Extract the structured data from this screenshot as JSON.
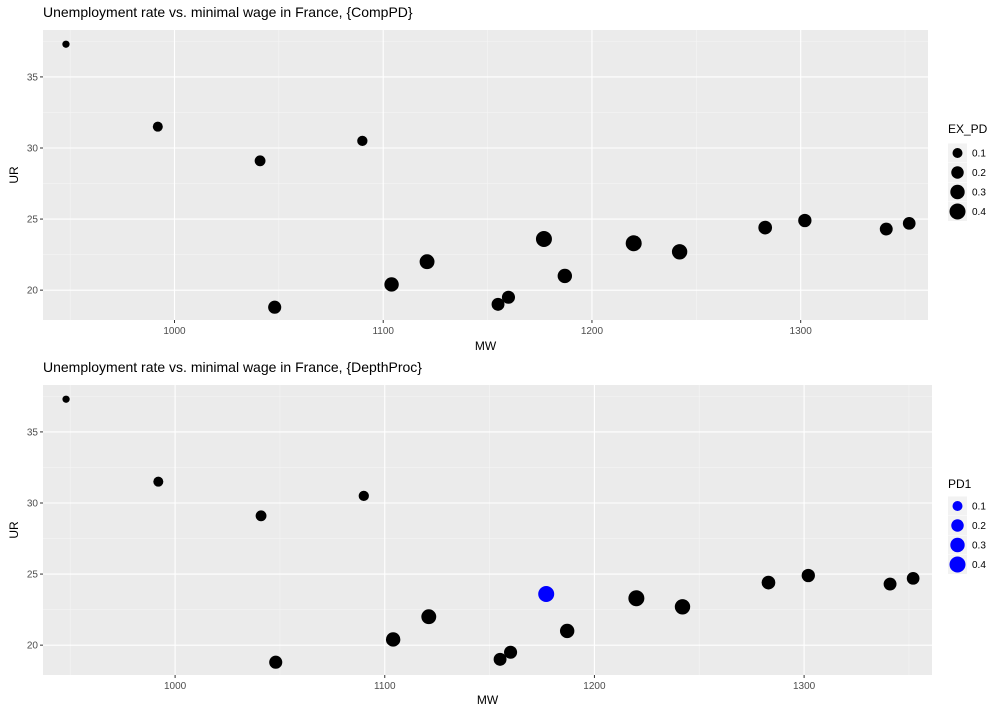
{
  "chart_data": [
    {
      "type": "scatter",
      "title": "Unemployment rate vs. minimal wage in France, {CompPD}",
      "xlabel": "MW",
      "ylabel": "UR",
      "xlim": [
        937,
        1361
      ],
      "ylim": [
        17.9,
        38.3
      ],
      "x_ticks": [
        1000,
        1100,
        1200,
        1300
      ],
      "y_ticks": [
        20,
        25,
        30,
        35
      ],
      "grid": true,
      "legend": {
        "title": "EX_PD",
        "position": "right",
        "entries": [
          "0.1",
          "0.2",
          "0.3",
          "0.4"
        ],
        "color": "#000000"
      },
      "points": [
        {
          "x": 948,
          "y": 37.3,
          "size": 0.03,
          "color": "#000000"
        },
        {
          "x": 992,
          "y": 31.5,
          "size": 0.1,
          "color": "#000000"
        },
        {
          "x": 1041,
          "y": 29.1,
          "size": 0.13,
          "color": "#000000"
        },
        {
          "x": 1048,
          "y": 18.8,
          "size": 0.23,
          "color": "#000000"
        },
        {
          "x": 1090,
          "y": 30.5,
          "size": 0.11,
          "color": "#000000"
        },
        {
          "x": 1104,
          "y": 20.4,
          "size": 0.3,
          "color": "#000000"
        },
        {
          "x": 1121,
          "y": 22.0,
          "size": 0.33,
          "color": "#000000"
        },
        {
          "x": 1155,
          "y": 19.0,
          "size": 0.22,
          "color": "#000000"
        },
        {
          "x": 1160,
          "y": 19.5,
          "size": 0.23,
          "color": "#000000"
        },
        {
          "x": 1177,
          "y": 23.6,
          "size": 0.4,
          "color": "#000000"
        },
        {
          "x": 1187,
          "y": 21.0,
          "size": 0.3,
          "color": "#000000"
        },
        {
          "x": 1220,
          "y": 23.3,
          "size": 0.4,
          "color": "#000000"
        },
        {
          "x": 1242,
          "y": 22.7,
          "size": 0.36,
          "color": "#000000"
        },
        {
          "x": 1283,
          "y": 24.4,
          "size": 0.26,
          "color": "#000000"
        },
        {
          "x": 1302,
          "y": 24.9,
          "size": 0.24,
          "color": "#000000"
        },
        {
          "x": 1341,
          "y": 24.3,
          "size": 0.22,
          "color": "#000000"
        },
        {
          "x": 1352,
          "y": 24.7,
          "size": 0.21,
          "color": "#000000"
        }
      ]
    },
    {
      "type": "scatter",
      "title": "Unemployment rate vs. minimal wage in France, {DepthProc}",
      "xlabel": "MW",
      "ylabel": "UR",
      "xlim": [
        937,
        1361
      ],
      "ylim": [
        17.9,
        38.3
      ],
      "x_ticks": [
        1000,
        1100,
        1200,
        1300
      ],
      "y_ticks": [
        20,
        25,
        30,
        35
      ],
      "grid": true,
      "legend": {
        "title": "PD1",
        "position": "right",
        "entries": [
          "0.1",
          "0.2",
          "0.3",
          "0.4"
        ],
        "color": "#0000ff"
      },
      "points": [
        {
          "x": 948,
          "y": 37.3,
          "size": 0.03,
          "color": "#000000"
        },
        {
          "x": 992,
          "y": 31.5,
          "size": 0.1,
          "color": "#000000"
        },
        {
          "x": 1041,
          "y": 29.1,
          "size": 0.13,
          "color": "#000000"
        },
        {
          "x": 1048,
          "y": 18.8,
          "size": 0.23,
          "color": "#000000"
        },
        {
          "x": 1090,
          "y": 30.5,
          "size": 0.11,
          "color": "#000000"
        },
        {
          "x": 1104,
          "y": 20.4,
          "size": 0.3,
          "color": "#000000"
        },
        {
          "x": 1121,
          "y": 22.0,
          "size": 0.33,
          "color": "#000000"
        },
        {
          "x": 1155,
          "y": 19.0,
          "size": 0.22,
          "color": "#000000"
        },
        {
          "x": 1160,
          "y": 19.5,
          "size": 0.23,
          "color": "#000000"
        },
        {
          "x": 1177,
          "y": 23.6,
          "size": 0.4,
          "color": "#0000ff"
        },
        {
          "x": 1187,
          "y": 21.0,
          "size": 0.3,
          "color": "#000000"
        },
        {
          "x": 1220,
          "y": 23.3,
          "size": 0.4,
          "color": "#000000"
        },
        {
          "x": 1242,
          "y": 22.7,
          "size": 0.36,
          "color": "#000000"
        },
        {
          "x": 1283,
          "y": 24.4,
          "size": 0.26,
          "color": "#000000"
        },
        {
          "x": 1302,
          "y": 24.9,
          "size": 0.24,
          "color": "#000000"
        },
        {
          "x": 1341,
          "y": 24.3,
          "size": 0.22,
          "color": "#000000"
        },
        {
          "x": 1352,
          "y": 24.7,
          "size": 0.21,
          "color": "#000000"
        }
      ]
    }
  ]
}
